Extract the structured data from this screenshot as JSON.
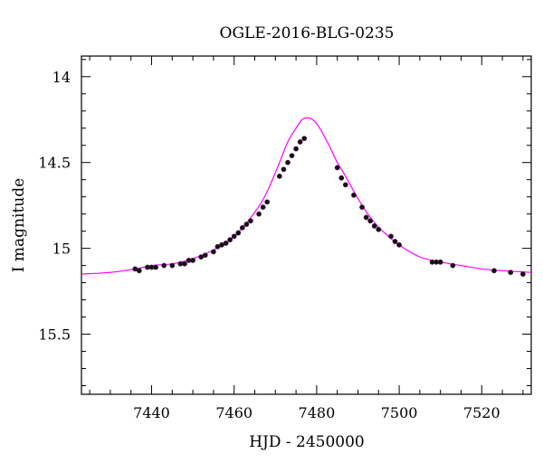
{
  "chart_data": {
    "type": "scatter",
    "title": "OGLE-2016-BLG-0235",
    "xlabel": "HJD - 2450000",
    "ylabel": "I magnitude",
    "xlim": [
      7423,
      7532
    ],
    "ylim": [
      15.85,
      13.88
    ],
    "y_inverted": true,
    "grid": false,
    "x_ticks": [
      7440,
      7460,
      7480,
      7500,
      7520
    ],
    "x_tick_labels": [
      "7440",
      "7460",
      "7480",
      "7500",
      "7520"
    ],
    "y_ticks": [
      14,
      14.5,
      15,
      15.5
    ],
    "y_tick_labels": [
      "14",
      "14.5",
      "15",
      "15.5"
    ],
    "colors": {
      "model": "#ff00ff",
      "points": "#111111",
      "axis": "#000000"
    },
    "model": {
      "name": "",
      "x": [
        7423,
        7430,
        7436,
        7440,
        7445,
        7450,
        7455,
        7460,
        7465,
        7468,
        7471,
        7473,
        7475,
        7476.5,
        7478,
        7479.5,
        7481,
        7483,
        7485,
        7487,
        7490,
        7493,
        7496,
        7500,
        7505,
        7510,
        7515,
        7520,
        7525,
        7532
      ],
      "y": [
        15.15,
        15.14,
        15.12,
        15.1,
        15.09,
        15.06,
        15.01,
        14.93,
        14.79,
        14.67,
        14.5,
        14.38,
        14.3,
        14.25,
        14.24,
        14.26,
        14.31,
        14.4,
        14.5,
        14.58,
        14.71,
        14.82,
        14.9,
        14.98,
        15.05,
        15.08,
        15.1,
        15.12,
        15.13,
        15.14
      ]
    },
    "series": [
      {
        "name": "",
        "x": [
          7436,
          7437,
          7439,
          7440,
          7441,
          7443,
          7445,
          7447,
          7448,
          7449,
          7450,
          7452,
          7453,
          7455,
          7456,
          7457,
          7458,
          7459,
          7460,
          7461,
          7462,
          7463,
          7464,
          7466,
          7467,
          7468,
          7471,
          7472,
          7473,
          7474,
          7475,
          7476,
          7477,
          7485,
          7486,
          7487,
          7489,
          7491,
          7492,
          7493,
          7494,
          7495,
          7498,
          7499,
          7500,
          7508,
          7509,
          7510,
          7513,
          7523,
          7527,
          7530
        ],
        "y": [
          15.12,
          15.13,
          15.11,
          15.11,
          15.11,
          15.1,
          15.1,
          15.09,
          15.09,
          15.07,
          15.07,
          15.05,
          15.04,
          15.02,
          14.99,
          14.98,
          14.97,
          14.95,
          14.93,
          14.91,
          14.88,
          14.86,
          14.84,
          14.8,
          14.76,
          14.73,
          14.58,
          14.54,
          14.5,
          14.46,
          14.42,
          14.38,
          14.36,
          14.53,
          14.59,
          14.63,
          14.69,
          14.76,
          14.82,
          14.84,
          14.87,
          14.89,
          14.93,
          14.96,
          14.98,
          15.08,
          15.08,
          15.08,
          15.1,
          15.13,
          15.14,
          15.15
        ]
      }
    ]
  }
}
